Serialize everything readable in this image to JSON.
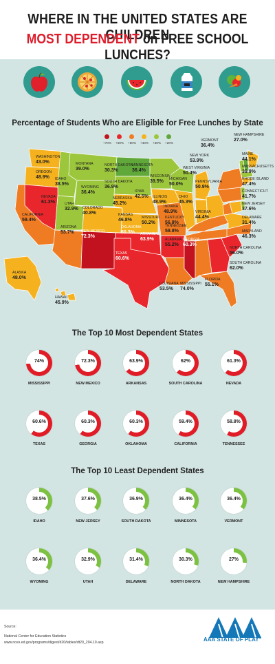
{
  "header": {
    "line1": "WHERE IN THE UNITED STATES ARE CHILDREN",
    "line2_red": "MOST DEPENDENT",
    "line2_rest": " on FREE SCHOOL LUNCHES?"
  },
  "icons": [
    "apple-icon",
    "pizza-icon",
    "watermelon-icon",
    "milk-carton-icon",
    "vegetables-icon"
  ],
  "map_section": {
    "title": "Percentage of Students Who are Eligible for Free Lunches by State",
    "legend": [
      {
        "label": "+70%",
        "color": "#c2121f"
      },
      {
        "label": "+60%",
        "color": "#e8262b"
      },
      {
        "label": "+50%",
        "color": "#ef7b22"
      },
      {
        "label": "+40%",
        "color": "#f5b21e"
      },
      {
        "label": "+30%",
        "color": "#9cc63c"
      },
      {
        "label": "+20%",
        "color": "#60a83a"
      }
    ],
    "states": [
      {
        "name": "WASHINGTON",
        "value": "43.0%"
      },
      {
        "name": "OREGON",
        "value": "48.9%"
      },
      {
        "name": "IDAHO",
        "value": "38.5%"
      },
      {
        "name": "MONTANA",
        "value": "39.0%"
      },
      {
        "name": "WYOMING",
        "value": "36.4%"
      },
      {
        "name": "NEVADA",
        "value": "61.3%"
      },
      {
        "name": "CALIFORNIA",
        "value": "59.4%"
      },
      {
        "name": "UTAH",
        "value": "32.9%"
      },
      {
        "name": "COLORADO",
        "value": "40.8%"
      },
      {
        "name": "ARIZONA",
        "value": "53.7%"
      },
      {
        "name": "NEW MEXICO",
        "value": "72.3%"
      },
      {
        "name": "NORTH DAKOTA",
        "value": "30.3%"
      },
      {
        "name": "SOUTH DAKOTA",
        "value": "36.9%"
      },
      {
        "name": "NEBRASKA",
        "value": "45.2%"
      },
      {
        "name": "KANSAS",
        "value": "46.8%"
      },
      {
        "name": "OKLAHOMA",
        "value": "60.3%"
      },
      {
        "name": "TEXAS",
        "value": "60.6%"
      },
      {
        "name": "MINNESOTA",
        "value": "36.4%"
      },
      {
        "name": "IOWA",
        "value": "42.5%"
      },
      {
        "name": "MISSOURI",
        "value": "50.2%"
      },
      {
        "name": "ARKANSAS",
        "value": "63.9%"
      },
      {
        "name": "LOUISIANA",
        "value": "53.5%"
      },
      {
        "name": "WISCONSIN",
        "value": "39.5%"
      },
      {
        "name": "ILLINOIS",
        "value": "48.9%"
      },
      {
        "name": "MICHIGAN",
        "value": "50.0%"
      },
      {
        "name": "INDIANA",
        "value": "48.9%"
      },
      {
        "name": "OHIO",
        "value": "45.3%"
      },
      {
        "name": "KENTUCKY",
        "value": "56.8%"
      },
      {
        "name": "TENNESSEE",
        "value": "58.8%"
      },
      {
        "name": "MISSISSIPPI",
        "value": "74.0%"
      },
      {
        "name": "ALABAMA",
        "value": "55.2%"
      },
      {
        "name": "GEORGIA",
        "value": "60.3%"
      },
      {
        "name": "FLORIDA",
        "value": "55.1%"
      },
      {
        "name": "SOUTH CAROLINA",
        "value": "62.0%"
      },
      {
        "name": "NORTH CAROLINA",
        "value": "56.0%"
      },
      {
        "name": "VIRGINIA",
        "value": "44.4%"
      },
      {
        "name": "WEST VIRGINIA",
        "value": "50.4%"
      },
      {
        "name": "PENNSYLVANIA",
        "value": "50.9%"
      },
      {
        "name": "NEW YORK",
        "value": "53.9%"
      },
      {
        "name": "VERMONT",
        "value": "36.4%"
      },
      {
        "name": "NEW HAMPSHIRE",
        "value": "27.0%"
      },
      {
        "name": "MAINE",
        "value": "44.1%"
      },
      {
        "name": "MASSACHUSETTS",
        "value": "39.9%"
      },
      {
        "name": "RHODE ISLAND",
        "value": "47.4%"
      },
      {
        "name": "CONNECTICUT",
        "value": "41.7%"
      },
      {
        "name": "NEW JERSEY",
        "value": "37.6%"
      },
      {
        "name": "DELAWARE",
        "value": "31.4%"
      },
      {
        "name": "MARYLAND",
        "value": "46.3%"
      },
      {
        "name": "ALASKA",
        "value": "48.0%"
      },
      {
        "name": "HAWAII",
        "value": "45.9%"
      }
    ]
  },
  "top_most": {
    "title": "The Top 10 Most Dependent States",
    "color": "#e01c26",
    "items": [
      {
        "name": "MISSISSIPPI",
        "label": "74%",
        "value": 74
      },
      {
        "name": "NEW MEXICO",
        "label": "72.3%",
        "value": 72.3
      },
      {
        "name": "ARKANSAS",
        "label": "63.9%",
        "value": 63.9
      },
      {
        "name": "SOUTH CAROLINA",
        "label": "62%",
        "value": 62
      },
      {
        "name": "NEVADA",
        "label": "61.3%",
        "value": 61.3
      },
      {
        "name": "TEXAS",
        "label": "60.6%",
        "value": 60.6
      },
      {
        "name": "GEORGIA",
        "label": "60.3%",
        "value": 60.3
      },
      {
        "name": "OKLAHOMA",
        "label": "60.3%",
        "value": 60.3
      },
      {
        "name": "CALIFORNIA",
        "label": "59.4%",
        "value": 59.4
      },
      {
        "name": "TENNESSEE",
        "label": "58.8%",
        "value": 58.8
      }
    ]
  },
  "top_least": {
    "title": "The Top 10 Least Dependent States",
    "color": "#7cc142",
    "items": [
      {
        "name": "IDAHO",
        "label": "38.5%",
        "value": 38.5
      },
      {
        "name": "NEW JERSEY",
        "label": "37.6%",
        "value": 37.6
      },
      {
        "name": "SOUTH DAKOTA",
        "label": "36.9%",
        "value": 36.9
      },
      {
        "name": "MINNESOTA",
        "label": "36.4%",
        "value": 36.4
      },
      {
        "name": "VERMONT",
        "label": "36.4%",
        "value": 36.4
      },
      {
        "name": "WYOMING",
        "label": "36.4%",
        "value": 36.4
      },
      {
        "name": "UTAH",
        "label": "32.9%",
        "value": 32.9
      },
      {
        "name": "DELAWARE",
        "label": "31.4%",
        "value": 31.4
      },
      {
        "name": "NORTH DAKOTA",
        "label": "30.3%",
        "value": 30.3
      },
      {
        "name": "NEW HAMPSHIRE",
        "label": "27%",
        "value": 27
      }
    ]
  },
  "footer": {
    "source_label": "Source:",
    "source_name": "National Center for Education Statistics",
    "source_url": "www.nces.ed.gov/programs/digest/d20/tables/dt20_204.10.asp",
    "logo_text": "AAA STATE OF PLAY",
    "logo_mark": "®"
  }
}
